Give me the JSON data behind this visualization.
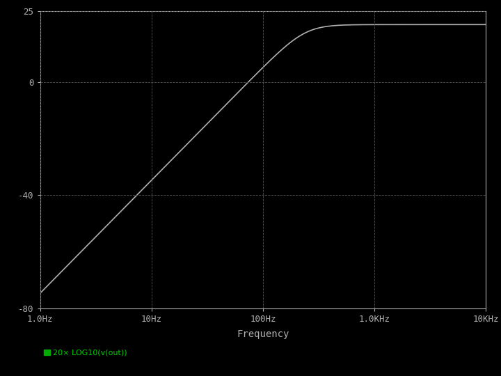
{
  "xlabel": "Frequency",
  "background_color": "#000000",
  "line_color": "#b0b0b0",
  "text_color": "#b0b0b0",
  "grid_color": "#3a3a3a",
  "tick_color": "#b0b0b0",
  "legend_text_color": "#00cc00",
  "legend_square_color": "#00aa00",
  "ylim": [
    -80,
    25
  ],
  "yticks": [
    -80,
    -40,
    0,
    25
  ],
  "ytick_labels": [
    "-80",
    "-40",
    "0",
    "25"
  ],
  "xmin_hz": 1.0,
  "xmax_hz": 10000.0,
  "xticks": [
    1,
    10,
    100,
    1000,
    10000
  ],
  "xtick_labels": [
    "1.0Hz",
    "10Hz",
    "100Hz",
    "1.0KHz",
    "10KHz"
  ],
  "legend_label": "20× LOG10(v(out))",
  "f0_hz": 237.0,
  "passband_db": 20.3,
  "zeta": 0.707,
  "figure_width": 7.2,
  "figure_height": 5.4,
  "dpi": 100
}
